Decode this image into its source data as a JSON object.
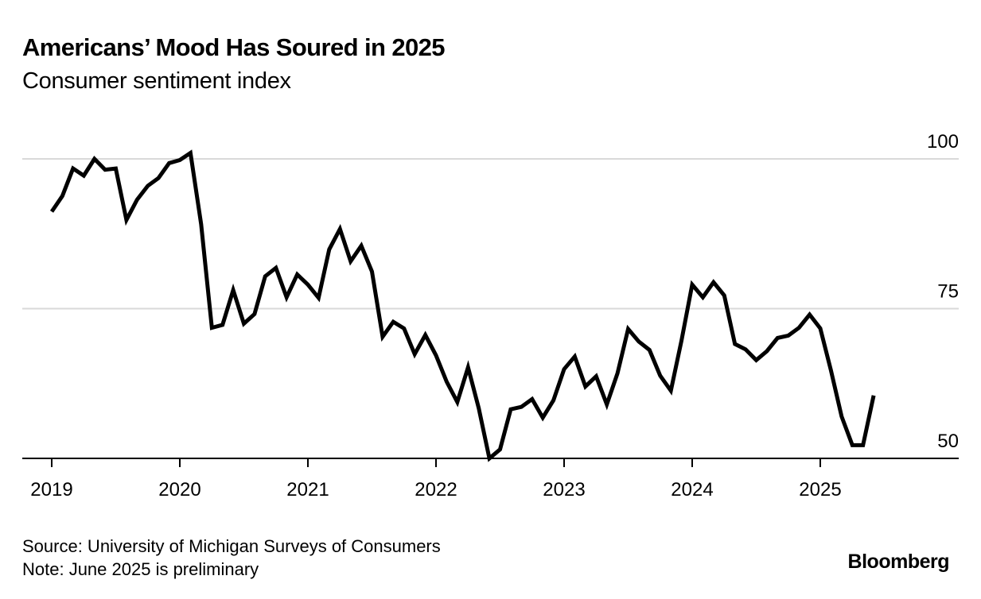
{
  "header": {
    "title": "Americans’ Mood Has Soured in 2025",
    "subtitle": "Consumer sentiment index"
  },
  "footer": {
    "source": "Source: University of Michigan Surveys of Consumers",
    "note": "Note: June 2025 is preliminary",
    "brand": "Bloomberg"
  },
  "colors": {
    "line": "#000000",
    "gridline": "#d9d9d9",
    "axis": "#000000"
  },
  "chart_data": {
    "type": "line",
    "title": "Americans’ Mood Has Soured in 2025",
    "subtitle": "Consumer sentiment index",
    "xlabel": "",
    "ylabel": "",
    "ylim": [
      50,
      100
    ],
    "yticks": [
      50,
      75,
      100
    ],
    "ytick_side": "right",
    "xticks": [
      "2019",
      "2020",
      "2021",
      "2022",
      "2023",
      "2024",
      "2025"
    ],
    "xlim": [
      "2019-01",
      "2025-12"
    ],
    "grid": "horizontal",
    "legend": "none",
    "series": [
      {
        "name": "Consumer sentiment index",
        "start": "2019-01",
        "frequency": "monthly",
        "values": [
          91.2,
          93.8,
          98.4,
          97.2,
          100.0,
          98.2,
          98.4,
          89.8,
          93.2,
          95.5,
          96.8,
          99.3,
          99.8,
          101.0,
          89.1,
          71.8,
          72.3,
          78.1,
          72.5,
          74.1,
          80.4,
          81.8,
          76.9,
          80.7,
          79.0,
          76.8,
          84.9,
          88.3,
          82.9,
          85.5,
          81.2,
          70.3,
          72.8,
          71.7,
          67.4,
          70.6,
          67.2,
          62.8,
          59.4,
          65.2,
          58.4,
          50.0,
          51.5,
          58.2,
          58.6,
          59.9,
          56.8,
          59.7,
          64.9,
          67.0,
          62.0,
          63.7,
          59.0,
          64.2,
          71.6,
          69.5,
          68.1,
          63.8,
          61.3,
          69.7,
          79.0,
          76.9,
          79.4,
          77.2,
          69.1,
          68.2,
          66.4,
          67.9,
          70.1,
          70.5,
          71.8,
          74.0,
          71.7,
          64.7,
          57.0,
          52.2,
          52.2,
          60.5
        ]
      }
    ]
  }
}
